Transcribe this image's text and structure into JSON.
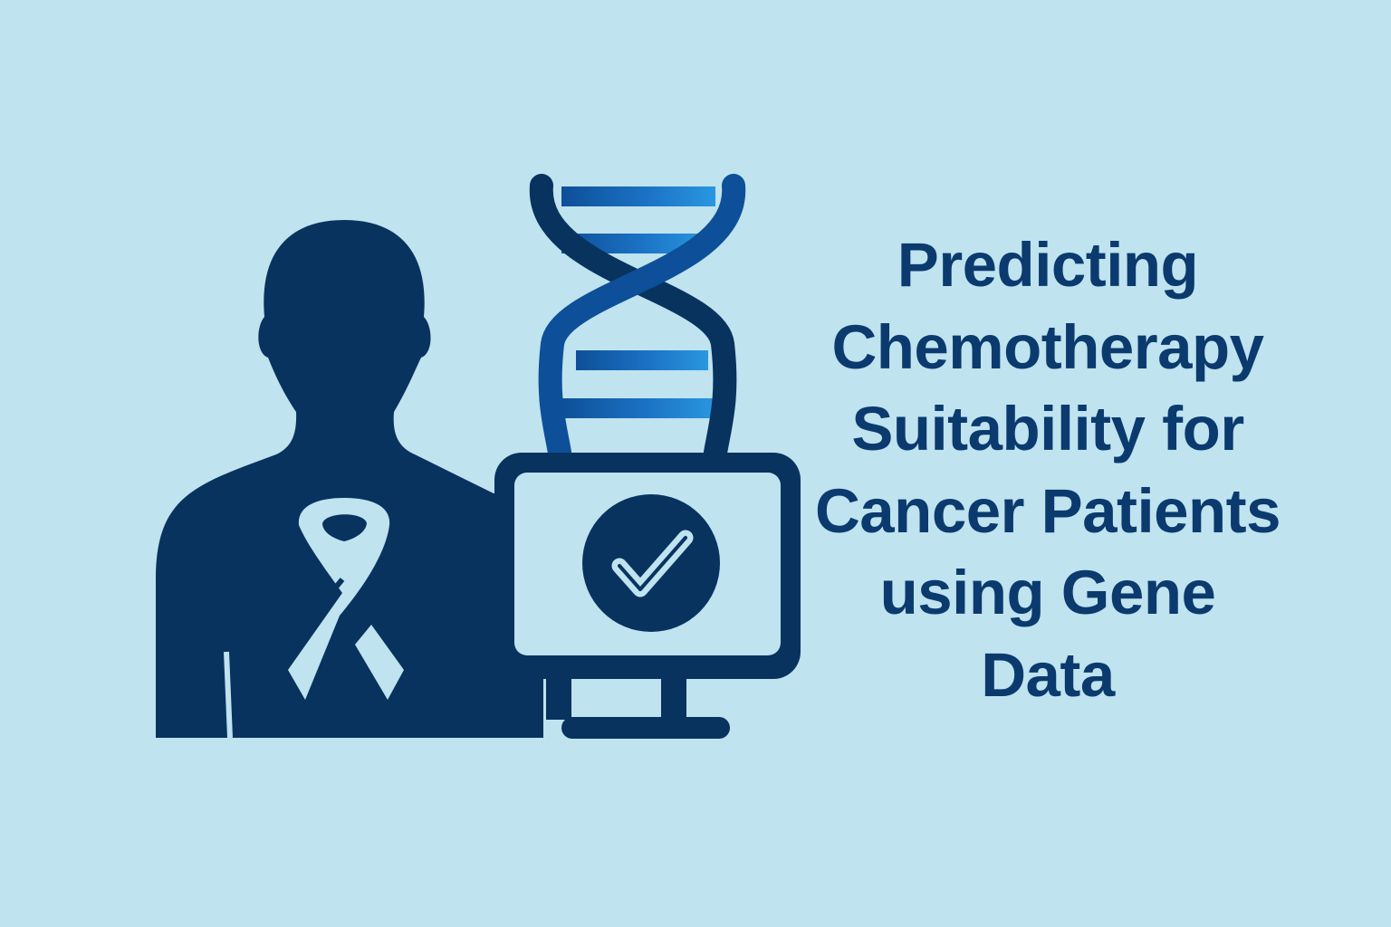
{
  "title_lines": [
    "Predicting",
    "Chemotherapy",
    "Suitability for",
    "Cancer Patients",
    "using Gene",
    "Data"
  ],
  "icons": {
    "person": "patient-silhouette-icon",
    "ribbon": "awareness-ribbon-icon",
    "dna": "dna-helix-icon",
    "monitor": "computer-monitor-icon",
    "check": "checkmark-circle-icon"
  },
  "colors": {
    "background": "#bfe3ef",
    "navy": "#08335f",
    "text": "#0b3a6e",
    "dna_blue": "#1f7fcf",
    "ribbon": "#bfe3ef"
  }
}
